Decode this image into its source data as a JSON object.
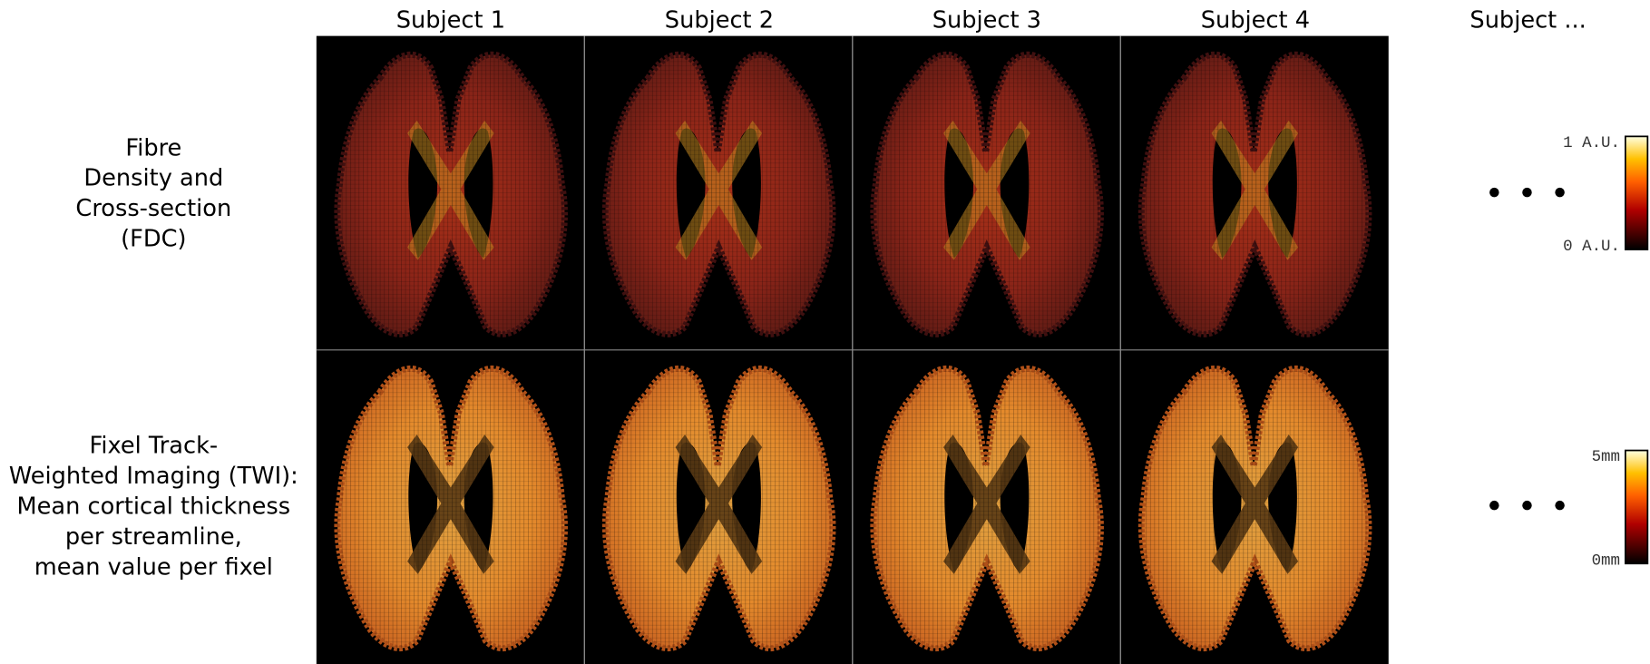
{
  "columns": [
    "Subject 1",
    "Subject 2",
    "Subject 3",
    "Subject 4",
    "Subject ..."
  ],
  "rows": [
    {
      "label": [
        "Fibre",
        "Density and",
        "Cross-section",
        "(FDC)"
      ],
      "colorbar": {
        "max": "1 A.U.",
        "min": "0 A.U."
      }
    },
    {
      "label": [
        "Fixel Track-",
        "Weighted Imaging (TWI):",
        "Mean cortical thickness",
        "per streamline,",
        "mean value per fixel"
      ],
      "colorbar": {
        "max": "5mm",
        "min": "0mm"
      }
    }
  ]
}
